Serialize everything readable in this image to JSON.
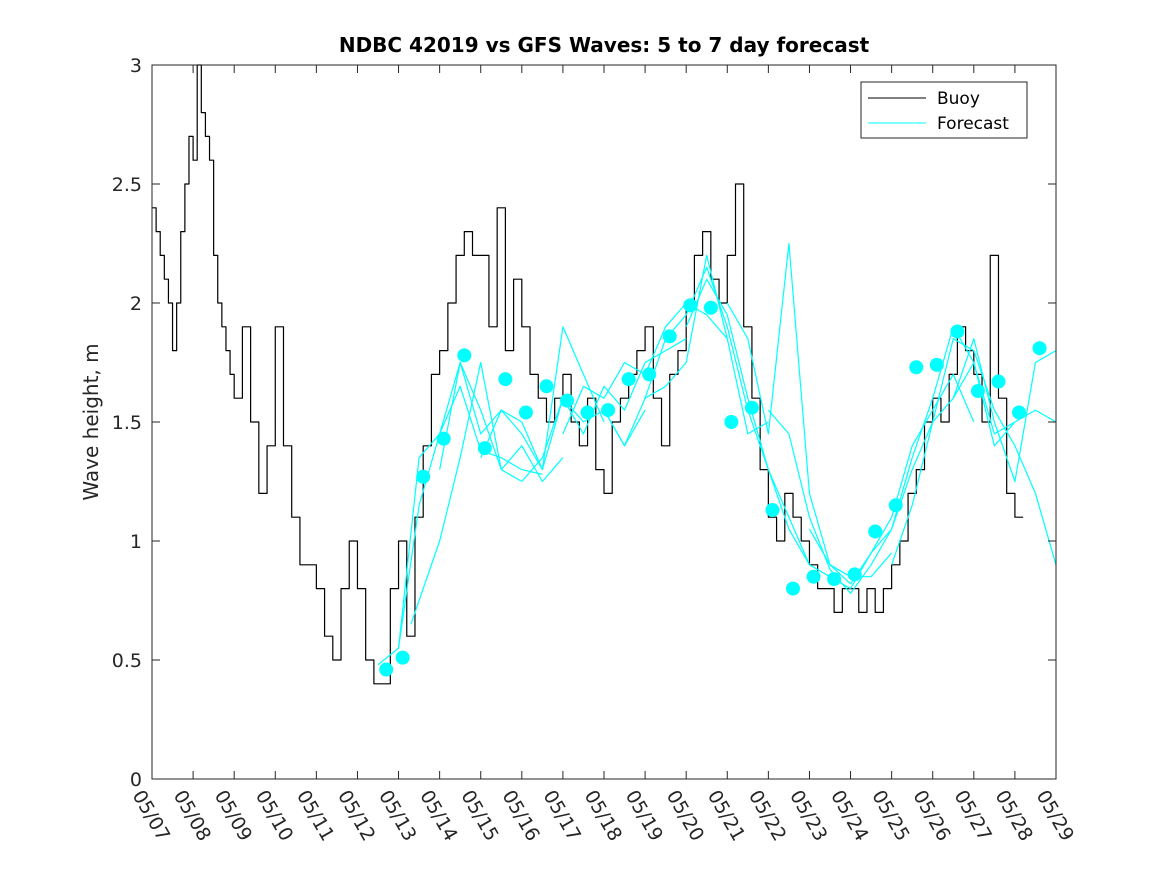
{
  "chart_data": {
    "type": "line",
    "title": "NDBC 42019 vs GFS Waves: 5 to 7 day forecast",
    "xlabel": "",
    "ylabel": "Wave height, m",
    "xlim": [
      0,
      22
    ],
    "ylim": [
      0,
      3
    ],
    "x_tick_labels": [
      "05/07",
      "05/08",
      "05/09",
      "05/10",
      "05/11",
      "05/12",
      "05/13",
      "05/14",
      "05/15",
      "05/16",
      "05/17",
      "05/18",
      "05/19",
      "05/20",
      "05/21",
      "05/22",
      "05/23",
      "05/24",
      "05/25",
      "05/26",
      "05/27",
      "05/28",
      "05/29"
    ],
    "y_ticks": [
      0,
      0.5,
      1,
      1.5,
      2,
      2.5,
      3
    ],
    "y_tick_labels": [
      "0",
      "0.5",
      "1",
      "1.5",
      "2",
      "2.5",
      "3"
    ],
    "legend": {
      "position": "top-right",
      "entries": [
        {
          "name": "Buoy",
          "color": "#000000"
        },
        {
          "name": "Forecast",
          "color": "#00FFFF"
        }
      ]
    },
    "colors": {
      "buoy": "#000000",
      "forecast": "#00FFFF",
      "markers": "#00FFFF"
    },
    "series": [
      {
        "name": "Buoy",
        "x": [
          0,
          0.1,
          0.2,
          0.3,
          0.4,
          0.5,
          0.6,
          0.7,
          0.8,
          0.9,
          1.0,
          1.1,
          1.2,
          1.3,
          1.4,
          1.5,
          1.6,
          1.7,
          1.8,
          1.9,
          2.0,
          2.2,
          2.4,
          2.6,
          2.8,
          3.0,
          3.2,
          3.4,
          3.6,
          3.8,
          4.0,
          4.2,
          4.4,
          4.6,
          4.8,
          5.0,
          5.2,
          5.4,
          5.6,
          5.8,
          6.0,
          6.2,
          6.4,
          6.6,
          6.8,
          7.0,
          7.2,
          7.4,
          7.6,
          7.8,
          8.0,
          8.2,
          8.4,
          8.6,
          8.8,
          9.0,
          9.2,
          9.4,
          9.6,
          9.8,
          10.0,
          10.2,
          10.4,
          10.6,
          10.8,
          11.0,
          11.2,
          11.4,
          11.6,
          11.8,
          12.0,
          12.2,
          12.4,
          12.6,
          12.8,
          13.0,
          13.2,
          13.4,
          13.6,
          13.8,
          14.0,
          14.2,
          14.4,
          14.6,
          14.8,
          15.0,
          15.2,
          15.4,
          15.6,
          15.8,
          16.0,
          16.2,
          16.4,
          16.6,
          16.8,
          17.0,
          17.2,
          17.4,
          17.6,
          17.8,
          18.0,
          18.2,
          18.4,
          18.6,
          18.8,
          19.0,
          19.2,
          19.4,
          19.6,
          19.8,
          20.0,
          20.2,
          20.4,
          20.6,
          20.8,
          21.0,
          21.1,
          21.2
        ],
        "values": [
          2.4,
          2.3,
          2.2,
          2.1,
          2.0,
          1.8,
          2.0,
          2.3,
          2.5,
          2.7,
          2.6,
          3.0,
          2.8,
          2.7,
          2.6,
          2.2,
          2.0,
          1.9,
          1.8,
          1.7,
          1.6,
          1.9,
          1.5,
          1.2,
          1.4,
          1.9,
          1.4,
          1.1,
          0.9,
          0.9,
          0.8,
          0.6,
          0.5,
          0.8,
          1.0,
          0.8,
          0.5,
          0.4,
          0.4,
          0.8,
          1.0,
          0.6,
          1.1,
          1.4,
          1.7,
          1.8,
          2.0,
          2.2,
          2.3,
          2.2,
          2.2,
          1.9,
          2.4,
          1.8,
          2.1,
          1.9,
          1.7,
          1.6,
          1.5,
          1.6,
          1.7,
          1.5,
          1.4,
          1.6,
          1.3,
          1.2,
          1.5,
          1.6,
          1.7,
          1.8,
          1.9,
          1.6,
          1.4,
          1.7,
          1.8,
          2.0,
          2.2,
          2.3,
          2.1,
          2.0,
          2.2,
          2.5,
          1.9,
          1.6,
          1.3,
          1.1,
          1.0,
          1.2,
          1.1,
          1.0,
          0.9,
          0.8,
          0.8,
          0.7,
          0.8,
          0.8,
          0.7,
          0.8,
          0.7,
          0.8,
          0.9,
          1.0,
          1.2,
          1.3,
          1.5,
          1.6,
          1.5,
          1.7,
          1.9,
          1.8,
          1.7,
          1.5,
          2.2,
          1.6,
          1.2,
          1.1,
          1.1,
          1.1
        ]
      },
      {
        "name": "Forecast run 1",
        "x": [
          5.5,
          6.0,
          6.5,
          7.0,
          7.5,
          8.0,
          8.5,
          9.0
        ],
        "values": [
          0.48,
          0.55,
          1.35,
          1.45,
          1.75,
          1.55,
          1.3,
          1.25
        ]
      },
      {
        "name": "Forecast run 2",
        "x": [
          6.0,
          6.5,
          7.0,
          7.5,
          8.0,
          8.5,
          9.0,
          9.5
        ],
        "values": [
          0.55,
          1.15,
          1.45,
          1.65,
          1.38,
          1.35,
          1.3,
          1.28
        ]
      },
      {
        "name": "Forecast run 3",
        "x": [
          6.3,
          7.0,
          7.5,
          8.0,
          8.5,
          9.0,
          9.5,
          10.0
        ],
        "values": [
          0.65,
          1.0,
          1.35,
          1.75,
          1.3,
          1.4,
          1.25,
          1.35
        ]
      },
      {
        "name": "Forecast run 4",
        "x": [
          7.0,
          7.5,
          8.0,
          8.5,
          9.0,
          9.5,
          10.0,
          10.5,
          11.0
        ],
        "values": [
          1.3,
          1.75,
          1.45,
          1.55,
          1.45,
          1.3,
          1.9,
          1.7,
          1.5
        ]
      },
      {
        "name": "Forecast run 5",
        "x": [
          8.0,
          8.5,
          9.0,
          9.5,
          10.0,
          10.5,
          11.0,
          11.5,
          12.0
        ],
        "values": [
          1.35,
          1.55,
          1.5,
          1.3,
          1.6,
          1.5,
          1.55,
          1.4,
          1.55
        ]
      },
      {
        "name": "Forecast run 6",
        "x": [
          9.0,
          9.5,
          10.0,
          10.5,
          11.0,
          11.5,
          12.0,
          12.5,
          13.0
        ],
        "values": [
          1.25,
          1.35,
          1.6,
          1.45,
          1.65,
          1.55,
          1.75,
          1.8,
          1.85
        ]
      },
      {
        "name": "Forecast run 7",
        "x": [
          10.0,
          10.5,
          11.0,
          11.5,
          12.0,
          12.5,
          13.0,
          13.5,
          14.0
        ],
        "values": [
          1.45,
          1.65,
          1.6,
          1.75,
          1.7,
          1.9,
          2.0,
          1.95,
          1.85
        ]
      },
      {
        "name": "Forecast run 8",
        "x": [
          11.0,
          11.5,
          12.0,
          12.5,
          13.0,
          13.5,
          14.0,
          14.5,
          15.0
        ],
        "values": [
          1.55,
          1.4,
          1.6,
          1.65,
          1.75,
          2.2,
          1.85,
          1.45,
          1.5
        ]
      },
      {
        "name": "Forecast run 9",
        "x": [
          12.0,
          12.5,
          13.0,
          13.5,
          14.0,
          14.5,
          15.0,
          15.5,
          16.0
        ],
        "values": [
          1.6,
          1.85,
          1.95,
          2.15,
          1.9,
          1.55,
          1.3,
          1.1,
          0.9
        ]
      },
      {
        "name": "Forecast run 10",
        "x": [
          13.0,
          13.5,
          14.0,
          14.5,
          15.0,
          15.5,
          16.0,
          16.5,
          17.0
        ],
        "values": [
          1.9,
          2.1,
          1.95,
          1.6,
          1.3,
          1.05,
          0.9,
          0.85,
          0.8
        ]
      },
      {
        "name": "Forecast run 11",
        "x": [
          14.0,
          14.5,
          15.0,
          15.5,
          16.0,
          16.5,
          17.0,
          17.5,
          18.0
        ],
        "values": [
          2.0,
          1.85,
          1.45,
          2.25,
          1.2,
          0.9,
          0.85,
          0.85,
          0.95
        ]
      },
      {
        "name": "Forecast run 12",
        "x": [
          15.0,
          15.5,
          16.0,
          16.5,
          17.0,
          17.5,
          18.0,
          18.5,
          19.0
        ],
        "values": [
          1.55,
          1.45,
          1.1,
          0.88,
          0.78,
          0.9,
          1.05,
          1.3,
          1.5
        ]
      },
      {
        "name": "Forecast run 13",
        "x": [
          16.0,
          16.5,
          17.0,
          17.5,
          18.0,
          18.5,
          19.0,
          19.5,
          20.0
        ],
        "values": [
          1.05,
          0.9,
          0.82,
          0.95,
          1.1,
          1.4,
          1.55,
          1.7,
          1.5
        ]
      },
      {
        "name": "Forecast run 14",
        "x": [
          17.0,
          17.5,
          18.0,
          18.5,
          19.0,
          19.5,
          20.0,
          20.5,
          21.0
        ],
        "values": [
          0.8,
          0.95,
          1.05,
          1.35,
          1.6,
          1.9,
          1.75,
          1.45,
          1.5
        ]
      },
      {
        "name": "Forecast run 15",
        "x": [
          18.0,
          18.5,
          19.0,
          19.5,
          20.0,
          20.5,
          21.0,
          21.5,
          22.0
        ],
        "values": [
          0.9,
          1.15,
          1.5,
          1.85,
          1.8,
          1.55,
          1.4,
          1.2,
          0.9
        ]
      },
      {
        "name": "Forecast run 16",
        "x": [
          19.0,
          19.5,
          20.0,
          20.5,
          21.0,
          21.5,
          22.0
        ],
        "values": [
          1.5,
          1.6,
          1.85,
          1.5,
          1.25,
          1.75,
          1.8
        ]
      },
      {
        "name": "Forecast run 17",
        "x": [
          19.5,
          20.0,
          20.5,
          21.0,
          21.5,
          22.0
        ],
        "values": [
          1.6,
          1.75,
          1.4,
          1.5,
          1.55,
          1.5
        ]
      }
    ],
    "markers": {
      "name": "Forecast points",
      "x": [
        5.7,
        6.1,
        6.6,
        7.1,
        7.6,
        8.1,
        8.6,
        9.1,
        9.6,
        10.1,
        10.6,
        11.1,
        11.6,
        12.1,
        12.6,
        13.1,
        13.6,
        14.1,
        14.6,
        15.1,
        15.6,
        16.1,
        16.6,
        17.1,
        17.6,
        18.1,
        18.6,
        19.1,
        19.6,
        20.1,
        20.6,
        21.1,
        21.6
      ],
      "values": [
        0.46,
        0.51,
        1.27,
        1.43,
        1.78,
        1.39,
        1.68,
        1.54,
        1.65,
        1.59,
        1.54,
        1.55,
        1.68,
        1.7,
        1.86,
        1.99,
        1.98,
        1.5,
        1.56,
        1.13,
        0.8,
        0.85,
        0.84,
        0.86,
        1.04,
        1.15,
        1.73,
        1.74,
        1.88,
        1.63,
        1.67,
        1.54,
        1.81
      ]
    }
  }
}
